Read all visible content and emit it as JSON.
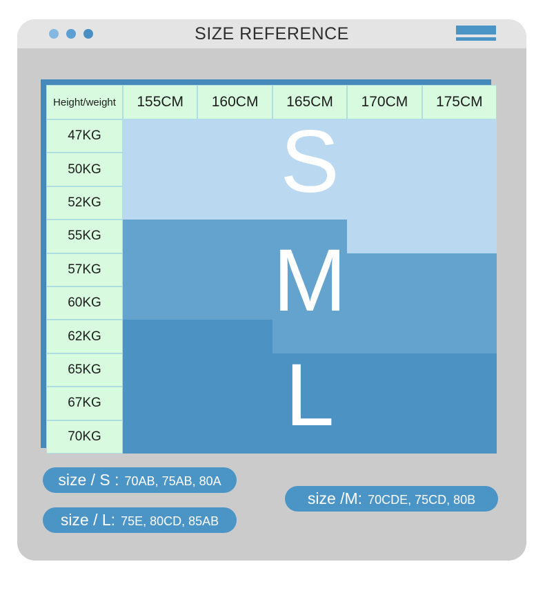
{
  "window": {
    "title": "SIZE REFERENCE",
    "dot_colors": [
      "#85b8e0",
      "#5c9fd2",
      "#4a8fc4"
    ],
    "titlebar_color": "#e4e4e4",
    "body_color": "#cbcbcb",
    "accent_color": "#4b94c6",
    "panel_color": "#4489ba"
  },
  "chart_data": {
    "type": "table",
    "title": "SIZE REFERENCE",
    "corner_label": "Height/weight",
    "columns": [
      "155CM",
      "160CM",
      "165CM",
      "170CM",
      "175CM"
    ],
    "rows": [
      {
        "weight": "47KG",
        "sizes": [
          "S",
          "S",
          "S",
          "S",
          "S"
        ]
      },
      {
        "weight": "50KG",
        "sizes": [
          "S",
          "S",
          "S",
          "S",
          "S"
        ]
      },
      {
        "weight": "52KG",
        "sizes": [
          "S",
          "S",
          "S",
          "S",
          "S"
        ]
      },
      {
        "weight": "55KG",
        "sizes": [
          "M",
          "M",
          "M",
          "S",
          "S"
        ]
      },
      {
        "weight": "57KG",
        "sizes": [
          "M",
          "M",
          "M",
          "M",
          "M"
        ]
      },
      {
        "weight": "60KG",
        "sizes": [
          "M",
          "M",
          "M",
          "M",
          "M"
        ]
      },
      {
        "weight": "62KG",
        "sizes": [
          "L",
          "L",
          "M",
          "M",
          "M"
        ]
      },
      {
        "weight": "65KG",
        "sizes": [
          "L",
          "L",
          "L",
          "L",
          "L"
        ]
      },
      {
        "weight": "67KG",
        "sizes": [
          "L",
          "L",
          "L",
          "L",
          "L"
        ]
      },
      {
        "weight": "70KG",
        "sizes": [
          "L",
          "L",
          "L",
          "L",
          "L"
        ]
      }
    ],
    "zone_colors": {
      "S": "#bad8ef",
      "M": "#64a3ce",
      "L": "#4c92c2"
    },
    "zone_letters": {
      "s": "S",
      "m": "M",
      "l": "L"
    },
    "header_bg": "#d8fadf",
    "grid": "off",
    "legend_position": "bottom"
  },
  "legend": {
    "s": {
      "label": "size / S :",
      "values": "70AB, 75AB, 80A"
    },
    "m": {
      "label": "size /M:",
      "values": "70CDE, 75CD, 80B"
    },
    "l": {
      "label": "size / L:",
      "values": "75E, 80CD, 85AB"
    }
  }
}
